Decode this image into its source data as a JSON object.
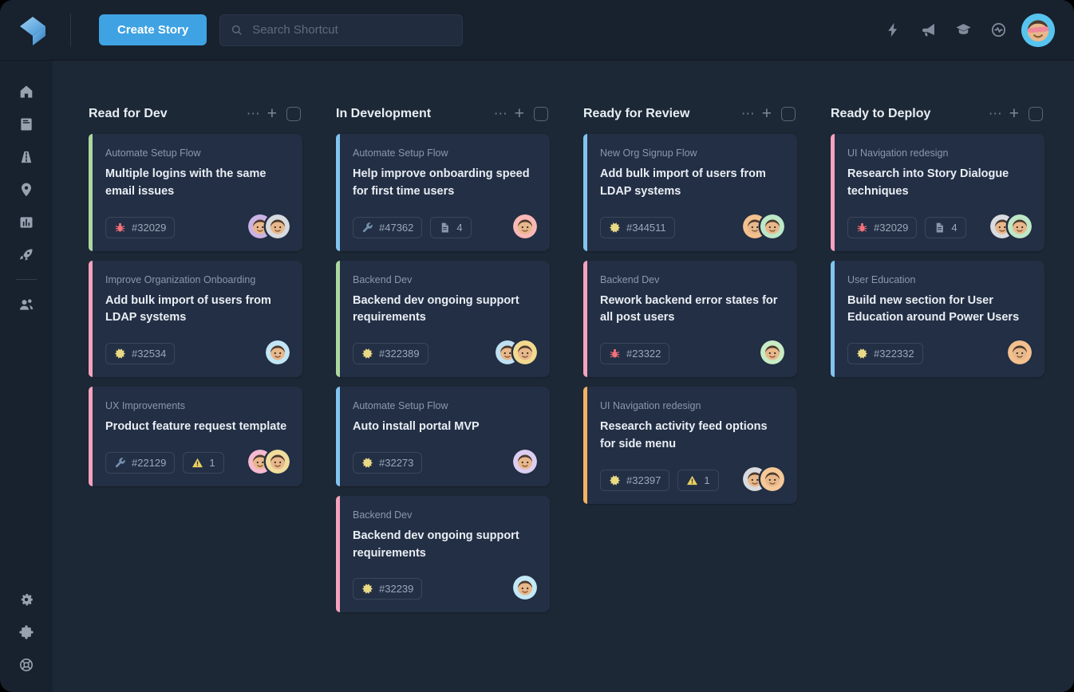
{
  "header": {
    "create_story_label": "Create Story",
    "search_placeholder": "Search Shortcut",
    "icons": [
      {
        "name": "lightning"
      },
      {
        "name": "megaphone"
      },
      {
        "name": "graduation-cap"
      },
      {
        "name": "activity"
      }
    ],
    "avatar_bg": "#56c4ee"
  },
  "sidebar": {
    "top": [
      {
        "name": "home"
      },
      {
        "name": "stories"
      },
      {
        "name": "roadmap"
      },
      {
        "name": "milestones"
      },
      {
        "name": "reports"
      },
      {
        "name": "launch"
      }
    ],
    "after_divider": [
      {
        "name": "members"
      }
    ],
    "bottom": [
      {
        "name": "settings"
      },
      {
        "name": "integrations"
      },
      {
        "name": "help"
      }
    ]
  },
  "colors": {
    "accent": "#3fa2e2",
    "bug": "#f4707b",
    "feature": "#e9d985",
    "wrench": "#7291ad",
    "warning": "#e9cf5f",
    "strip_green": "#abd7a0",
    "strip_pink": "#f6a2bd",
    "strip_blue": "#82c3f0",
    "strip_orange": "#f2b263"
  },
  "board": {
    "column_menu_glyph": "⋯",
    "column_add_glyph": "+",
    "columns": [
      {
        "title": "Read for Dev",
        "cards": [
          {
            "epic": "Automate Setup Flow",
            "title": "Multiple logins with the same email issues",
            "strip": "#abd7a0",
            "badges": [
              {
                "icon": "bug",
                "label": "#32029"
              }
            ],
            "avatars": [
              {
                "bg": "#cbb3e6"
              },
              {
                "bg": "#d7dade"
              }
            ]
          },
          {
            "epic": "Improve Organization Onboarding",
            "title": "Add bulk import of users from LDAP systems",
            "strip": "#f6a2bd",
            "badges": [
              {
                "icon": "feature",
                "label": "#32534"
              }
            ],
            "avatars": [
              {
                "bg": "#c2e6f5"
              }
            ]
          },
          {
            "epic": "UX Improvements",
            "title": "Product feature request template",
            "strip": "#f6a2bd",
            "badges": [
              {
                "icon": "wrench",
                "label": "#22129"
              },
              {
                "icon": "warning",
                "label": "1"
              }
            ],
            "avatars": [
              {
                "bg": "#f6b9d0"
              },
              {
                "bg": "#f0dc9c"
              }
            ]
          }
        ]
      },
      {
        "title": "In Development",
        "cards": [
          {
            "epic": "Automate Setup Flow",
            "title": "Help improve onboarding speed for first time users",
            "strip": "#82c3f0",
            "badges": [
              {
                "icon": "wrench",
                "label": "#47362"
              },
              {
                "icon": "doc",
                "label": "4"
              }
            ],
            "avatars": [
              {
                "bg": "#f9b8b6"
              }
            ]
          },
          {
            "epic": "Backend Dev",
            "title": "Backend dev ongoing support requirements",
            "strip": "#abd7a0",
            "badges": [
              {
                "icon": "feature",
                "label": "#322389"
              }
            ],
            "avatars": [
              {
                "bg": "#bfe0f2"
              },
              {
                "bg": "#f3d98e"
              }
            ]
          },
          {
            "epic": "Automate Setup Flow",
            "title": "Auto install portal MVP",
            "strip": "#82c3f0",
            "badges": [
              {
                "icon": "feature",
                "label": "#32273"
              }
            ],
            "avatars": [
              {
                "bg": "#dccef2"
              }
            ]
          },
          {
            "epic": "Backend Dev",
            "title": "Backend dev ongoing support requirements",
            "strip": "#f6a2bd",
            "badges": [
              {
                "icon": "feature",
                "label": "#32239"
              }
            ],
            "avatars": [
              {
                "bg": "#c3e8f6"
              }
            ]
          }
        ]
      },
      {
        "title": "Ready for Review",
        "cards": [
          {
            "epic": "New Org Signup Flow",
            "title": "Add bulk import of users from LDAP systems",
            "strip": "#82c3f0",
            "badges": [
              {
                "icon": "feature",
                "label": "#344511"
              }
            ],
            "avatars": [
              {
                "bg": "#f4c08e"
              },
              {
                "bg": "#bce8c8"
              }
            ]
          },
          {
            "epic": "Backend Dev",
            "title": "Rework backend error states for all post users",
            "strip": "#f6a2bd",
            "badges": [
              {
                "icon": "bug",
                "label": "#23322"
              }
            ],
            "avatars": [
              {
                "bg": "#c8ecc4"
              }
            ]
          },
          {
            "epic": "UI Navigation redesign",
            "title": "Research activity feed options for side menu",
            "strip": "#f2b263",
            "badges": [
              {
                "icon": "feature",
                "label": "#32397"
              },
              {
                "icon": "warning",
                "label": "1"
              }
            ],
            "avatars": [
              {
                "bg": "#d8dbdf"
              },
              {
                "bg": "#f6c897"
              }
            ]
          }
        ]
      },
      {
        "title": "Ready to Deploy",
        "cards": [
          {
            "epic": "UI Navigation redesign",
            "title": "Research into Story Dialogue techniques",
            "strip": "#f6a2bd",
            "badges": [
              {
                "icon": "bug",
                "label": "#32029"
              },
              {
                "icon": "doc",
                "label": "4"
              }
            ],
            "avatars": [
              {
                "bg": "#d8dbdf"
              },
              {
                "bg": "#bce8c8"
              }
            ]
          },
          {
            "epic": "User Education",
            "title": "Build new section for User Education around Power Users",
            "strip": "#82c3f0",
            "badges": [
              {
                "icon": "feature",
                "label": "#322332"
              }
            ],
            "avatars": [
              {
                "bg": "#f4c08e"
              }
            ]
          }
        ]
      }
    ]
  }
}
